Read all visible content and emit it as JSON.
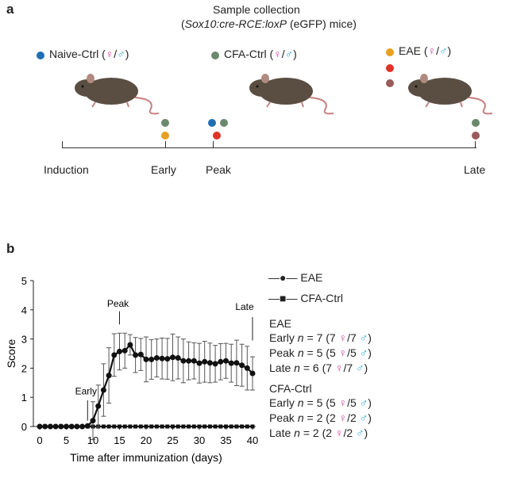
{
  "panel_a": {
    "label": "a",
    "title": "Sample collection",
    "subtitle_pre": "(",
    "subtitle_italic": "Sox10:cre-RCE:loxP",
    "subtitle_post": " (eGFP) mice)",
    "groups": [
      {
        "name": "Naive-Ctrl",
        "color": "#1f6fb5"
      },
      {
        "name": "CFA-Ctrl",
        "color": "#6a8a6e"
      },
      {
        "name": "EAE",
        "color": "#e8a020"
      }
    ],
    "extra_colors": {
      "red": "#e03326",
      "brown": "#9a5a5a"
    },
    "female": "♀",
    "male": "♂",
    "slash": "/",
    "timeline": [
      "Induction",
      "Early",
      "Peak",
      "Late"
    ]
  },
  "panel_b": {
    "label": "b",
    "legend": [
      "EAE",
      "CFA-Ctrl"
    ],
    "eae_heading": "EAE",
    "eae_rows": [
      {
        "tp": "Early",
        "n": "7",
        "f": "7",
        "m": "7"
      },
      {
        "tp": "Peak",
        "n": "5",
        "f": "5",
        "m": "5"
      },
      {
        "tp": "Late",
        "n": "6",
        "f": "7",
        "m": "7"
      }
    ],
    "cfa_heading": "CFA-Ctrl",
    "cfa_rows": [
      {
        "tp": "Early",
        "n": "5",
        "f": "5",
        "m": "5"
      },
      {
        "tp": "Peak",
        "n": "2",
        "f": "2",
        "m": "2"
      },
      {
        "tp": "Late",
        "n": "2",
        "f": "2",
        "m": "2"
      }
    ]
  },
  "chart_data": {
    "type": "line",
    "xlabel": "Time after immunization (days)",
    "ylabel": "Score",
    "xlim": [
      0,
      40
    ],
    "ylim": [
      0,
      5
    ],
    "xticks": [
      0,
      5,
      10,
      15,
      20,
      25,
      30,
      35,
      40
    ],
    "yticks": [
      0,
      1,
      2,
      3,
      4,
      5
    ],
    "annotations": [
      {
        "text": "Early",
        "x": 9
      },
      {
        "text": "Peak",
        "x": 15
      },
      {
        "text": "Late",
        "x": 40
      }
    ],
    "x": [
      0,
      1,
      2,
      3,
      4,
      5,
      6,
      7,
      8,
      9,
      10,
      11,
      12,
      13,
      14,
      15,
      16,
      17,
      18,
      19,
      20,
      21,
      22,
      23,
      24,
      25,
      26,
      27,
      28,
      29,
      30,
      31,
      32,
      33,
      34,
      35,
      36,
      37,
      38,
      39,
      40
    ],
    "series": [
      {
        "name": "EAE",
        "marker": "circle",
        "values": [
          0,
          0,
          0,
          0,
          0,
          0,
          0,
          0,
          0,
          0.02,
          0.2,
          0.7,
          1.25,
          1.75,
          2.45,
          2.57,
          2.6,
          2.8,
          2.45,
          2.47,
          2.3,
          2.3,
          2.35,
          2.33,
          2.32,
          2.37,
          2.35,
          2.25,
          2.25,
          2.25,
          2.17,
          2.22,
          2.18,
          2.15,
          2.22,
          2.25,
          2.17,
          2.18,
          2.1,
          2.0,
          1.82
        ],
        "error": [
          0,
          0,
          0,
          0,
          0,
          0,
          0,
          0,
          0,
          0.05,
          0.65,
          0.72,
          0.9,
          0.95,
          0.73,
          0.63,
          0.6,
          0.35,
          0.6,
          0.55,
          0.77,
          0.68,
          0.65,
          0.7,
          0.7,
          0.8,
          0.72,
          0.75,
          0.65,
          0.62,
          0.68,
          0.7,
          0.68,
          0.63,
          0.62,
          0.6,
          0.65,
          0.78,
          0.72,
          0.75,
          0.57
        ]
      },
      {
        "name": "CFA-Ctrl",
        "marker": "square",
        "values": [
          0,
          0,
          0,
          0,
          0,
          0,
          0,
          0,
          0,
          0,
          0,
          0,
          0,
          0,
          0,
          0,
          0,
          0,
          0,
          0,
          0,
          0,
          0,
          0,
          0,
          0,
          0,
          0,
          0,
          0,
          0,
          0,
          0,
          0,
          0,
          0,
          0,
          0,
          0,
          0,
          0
        ]
      }
    ]
  }
}
